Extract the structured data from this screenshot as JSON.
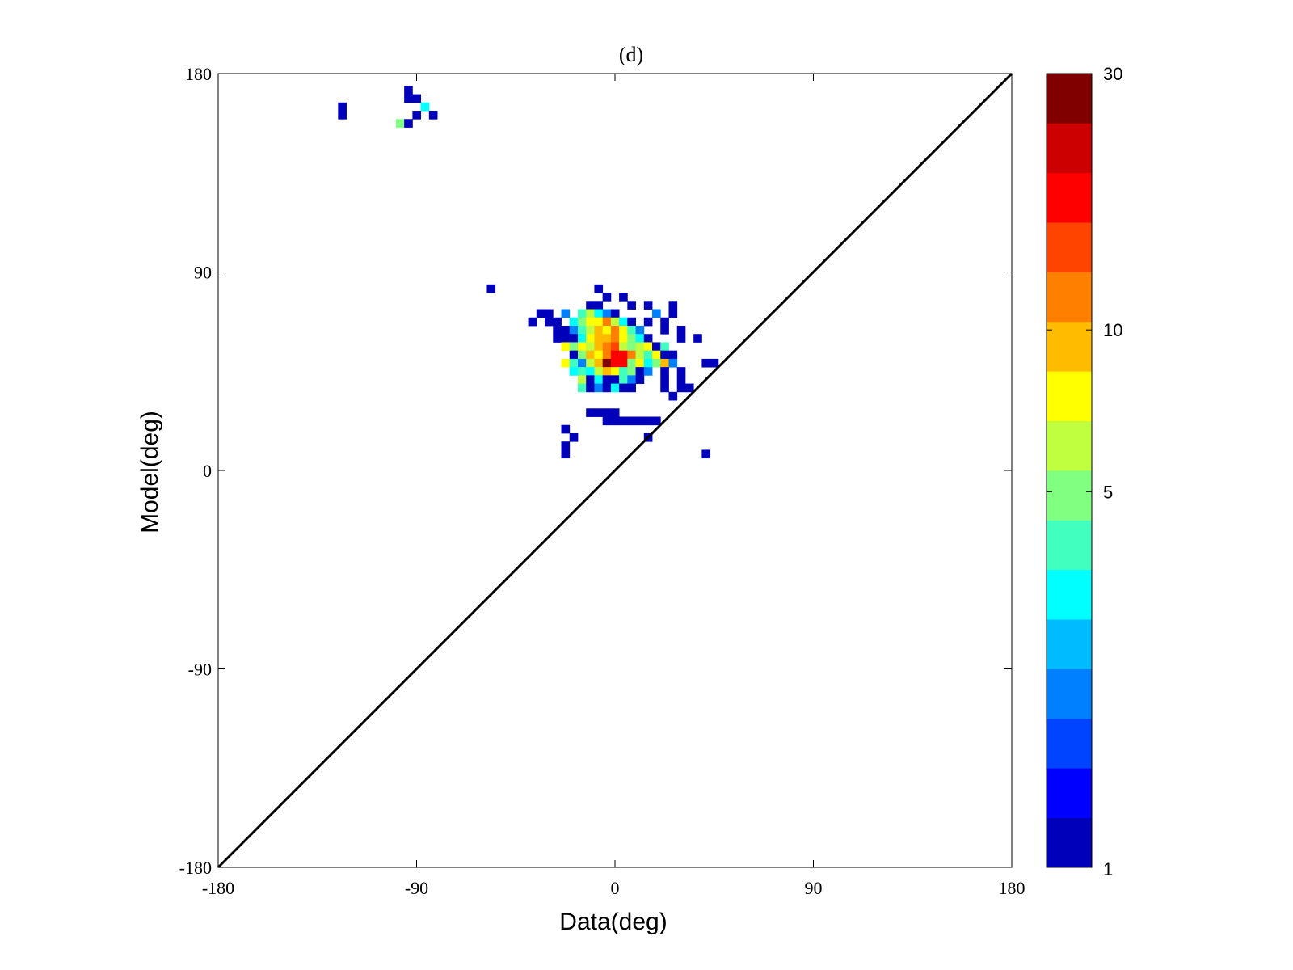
{
  "chart_data": {
    "type": "heatmap",
    "title": "(d)",
    "xlabel": "Data(deg)",
    "ylabel": "Model(deg)",
    "xlim": [
      -180,
      180
    ],
    "ylim": [
      -180,
      180
    ],
    "xticks": [
      -180,
      -90,
      0,
      90,
      180
    ],
    "yticks": [
      -180,
      -90,
      0,
      90,
      180
    ],
    "xtick_labels": [
      "-180",
      "-90",
      "0",
      "90",
      "180"
    ],
    "ytick_labels": [
      "-180",
      "-90",
      "0",
      "90",
      "180"
    ],
    "bin_size_deg": 3.75,
    "reference_line": {
      "from": [
        -180,
        -180
      ],
      "to": [
        180,
        180
      ],
      "color": "#000000"
    },
    "colorbar": {
      "scale": "log",
      "min": 1,
      "max": 30,
      "ticks": [
        1,
        5,
        10,
        30
      ],
      "tick_labels": [
        "1",
        "5",
        "10",
        "30"
      ],
      "colors": [
        "#0000bb",
        "#0000ff",
        "#0044ff",
        "#0080ff",
        "#00bbff",
        "#00ffff",
        "#40ffbf",
        "#80ff80",
        "#bfff40",
        "#ffff00",
        "#ffbb00",
        "#ff8000",
        "#ff4400",
        "#ff0000",
        "#cc0000",
        "#800000"
      ]
    },
    "points": [
      [
        -123.75,
        161.25,
        1
      ],
      [
        -123.75,
        165,
        1
      ],
      [
        -93.75,
        172.5,
        1
      ],
      [
        -93.75,
        168.75,
        1
      ],
      [
        -90,
        168.75,
        1
      ],
      [
        -86.25,
        165,
        3
      ],
      [
        -90,
        161.25,
        1
      ],
      [
        -82.5,
        161.25,
        1
      ],
      [
        -97.5,
        157.5,
        5
      ],
      [
        -93.75,
        157.5,
        1
      ],
      [
        -56.25,
        82.5,
        1
      ],
      [
        -7.5,
        82.5,
        1
      ],
      [
        -3.75,
        78.75,
        1
      ],
      [
        3.75,
        78.75,
        1
      ],
      [
        -11.25,
        75,
        1
      ],
      [
        -7.5,
        75,
        1
      ],
      [
        7.5,
        75,
        1
      ],
      [
        15,
        75,
        1
      ],
      [
        26.25,
        75,
        1
      ],
      [
        -33.75,
        71.25,
        1
      ],
      [
        -30,
        71.25,
        1
      ],
      [
        -22.5,
        71.25,
        2
      ],
      [
        -15,
        71.25,
        4
      ],
      [
        -11.25,
        71.25,
        6
      ],
      [
        -7.5,
        71.25,
        3
      ],
      [
        -3.75,
        71.25,
        2
      ],
      [
        0,
        71.25,
        1
      ],
      [
        18.75,
        71.25,
        2
      ],
      [
        26.25,
        71.25,
        1
      ],
      [
        -37.5,
        67.5,
        1
      ],
      [
        -30,
        67.5,
        1
      ],
      [
        -26.25,
        67.5,
        1
      ],
      [
        -18.75,
        67.5,
        3
      ],
      [
        -15,
        67.5,
        5
      ],
      [
        -11.25,
        67.5,
        7
      ],
      [
        -7.5,
        67.5,
        8
      ],
      [
        -3.75,
        67.5,
        12
      ],
      [
        0,
        67.5,
        6
      ],
      [
        3.75,
        67.5,
        3
      ],
      [
        7.5,
        67.5,
        1
      ],
      [
        15,
        67.5,
        1
      ],
      [
        22.5,
        67.5,
        1
      ],
      [
        -26.25,
        63.75,
        1
      ],
      [
        -22.5,
        63.75,
        1
      ],
      [
        -18.75,
        63.75,
        2
      ],
      [
        -15,
        63.75,
        4
      ],
      [
        -11.25,
        63.75,
        6
      ],
      [
        -7.5,
        63.75,
        10
      ],
      [
        -3.75,
        63.75,
        7
      ],
      [
        0,
        63.75,
        12
      ],
      [
        3.75,
        63.75,
        8
      ],
      [
        7.5,
        63.75,
        4
      ],
      [
        11.25,
        63.75,
        2
      ],
      [
        22.5,
        63.75,
        1
      ],
      [
        30,
        63.75,
        1
      ],
      [
        -26.25,
        60,
        1
      ],
      [
        -22.5,
        60,
        1
      ],
      [
        -18.75,
        60,
        1
      ],
      [
        -15,
        60,
        3
      ],
      [
        -11.25,
        60,
        8
      ],
      [
        -7.5,
        60,
        10
      ],
      [
        -3.75,
        60,
        9
      ],
      [
        0,
        60,
        11
      ],
      [
        3.75,
        60,
        7
      ],
      [
        7.5,
        60,
        5
      ],
      [
        11.25,
        60,
        3
      ],
      [
        15,
        60,
        1
      ],
      [
        30,
        60,
        1
      ],
      [
        37.5,
        60,
        1
      ],
      [
        -22.5,
        56.25,
        7
      ],
      [
        -18.75,
        56.25,
        5
      ],
      [
        -15,
        56.25,
        8
      ],
      [
        -11.25,
        56.25,
        6
      ],
      [
        -7.5,
        56.25,
        9
      ],
      [
        -3.75,
        56.25,
        12
      ],
      [
        0,
        56.25,
        15
      ],
      [
        3.75,
        56.25,
        6
      ],
      [
        7.5,
        56.25,
        5
      ],
      [
        11.25,
        56.25,
        6
      ],
      [
        15,
        56.25,
        8
      ],
      [
        18.75,
        56.25,
        1
      ],
      [
        22.5,
        56.25,
        4
      ],
      [
        -18.75,
        52.5,
        1
      ],
      [
        -15,
        52.5,
        5
      ],
      [
        -11.25,
        52.5,
        9
      ],
      [
        -7.5,
        52.5,
        7
      ],
      [
        -3.75,
        52.5,
        12
      ],
      [
        0,
        52.5,
        18
      ],
      [
        3.75,
        52.5,
        18
      ],
      [
        7.5,
        52.5,
        12
      ],
      [
        11.25,
        52.5,
        6
      ],
      [
        15,
        52.5,
        4
      ],
      [
        18.75,
        52.5,
        8
      ],
      [
        22.5,
        52.5,
        1
      ],
      [
        26.25,
        52.5,
        1
      ],
      [
        -22.5,
        48.75,
        7
      ],
      [
        -18.75,
        48.75,
        4
      ],
      [
        -15,
        48.75,
        2
      ],
      [
        -11.25,
        48.75,
        6
      ],
      [
        -7.5,
        48.75,
        9
      ],
      [
        -3.75,
        48.75,
        30
      ],
      [
        0,
        48.75,
        18
      ],
      [
        3.75,
        48.75,
        17
      ],
      [
        7.5,
        48.75,
        5
      ],
      [
        11.25,
        48.75,
        7
      ],
      [
        15,
        48.75,
        3
      ],
      [
        18.75,
        48.75,
        5
      ],
      [
        22.5,
        48.75,
        10
      ],
      [
        26.25,
        48.75,
        2
      ],
      [
        41.25,
        48.75,
        1
      ],
      [
        45,
        48.75,
        1
      ],
      [
        -18.75,
        45,
        3
      ],
      [
        -15,
        45,
        4
      ],
      [
        -11.25,
        45,
        3
      ],
      [
        -7.5,
        45,
        6
      ],
      [
        -3.75,
        45,
        9
      ],
      [
        0,
        45,
        8
      ],
      [
        3.75,
        45,
        4
      ],
      [
        7.5,
        45,
        5
      ],
      [
        11.25,
        45,
        1
      ],
      [
        15,
        45,
        2
      ],
      [
        22.5,
        45,
        1
      ],
      [
        30,
        45,
        1
      ],
      [
        -15,
        41.25,
        6
      ],
      [
        -11.25,
        41.25,
        1
      ],
      [
        -7.5,
        41.25,
        3
      ],
      [
        -3.75,
        41.25,
        1
      ],
      [
        0,
        41.25,
        1
      ],
      [
        3.75,
        41.25,
        4
      ],
      [
        7.5,
        41.25,
        2
      ],
      [
        11.25,
        41.25,
        1
      ],
      [
        22.5,
        41.25,
        1
      ],
      [
        30,
        41.25,
        1
      ],
      [
        -15,
        37.5,
        4
      ],
      [
        -11.25,
        37.5,
        1
      ],
      [
        -7.5,
        37.5,
        2
      ],
      [
        -3.75,
        37.5,
        1
      ],
      [
        0,
        37.5,
        3
      ],
      [
        3.75,
        37.5,
        1
      ],
      [
        7.5,
        37.5,
        1
      ],
      [
        22.5,
        37.5,
        1
      ],
      [
        30,
        37.5,
        1
      ],
      [
        33.75,
        37.5,
        1
      ],
      [
        26.25,
        33.75,
        1
      ],
      [
        -11.25,
        26.25,
        1
      ],
      [
        -7.5,
        26.25,
        1
      ],
      [
        -3.75,
        26.25,
        1
      ],
      [
        0,
        26.25,
        1
      ],
      [
        -3.75,
        22.5,
        1
      ],
      [
        0,
        22.5,
        1
      ],
      [
        3.75,
        22.5,
        1
      ],
      [
        7.5,
        22.5,
        1
      ],
      [
        11.25,
        22.5,
        1
      ],
      [
        15,
        22.5,
        1
      ],
      [
        18.75,
        22.5,
        1
      ],
      [
        -22.5,
        18.75,
        1
      ],
      [
        -18.75,
        15,
        1
      ],
      [
        15,
        15,
        1
      ],
      [
        -22.5,
        11.25,
        1
      ],
      [
        -22.5,
        7.5,
        1
      ],
      [
        41.25,
        7.5,
        1
      ]
    ]
  }
}
